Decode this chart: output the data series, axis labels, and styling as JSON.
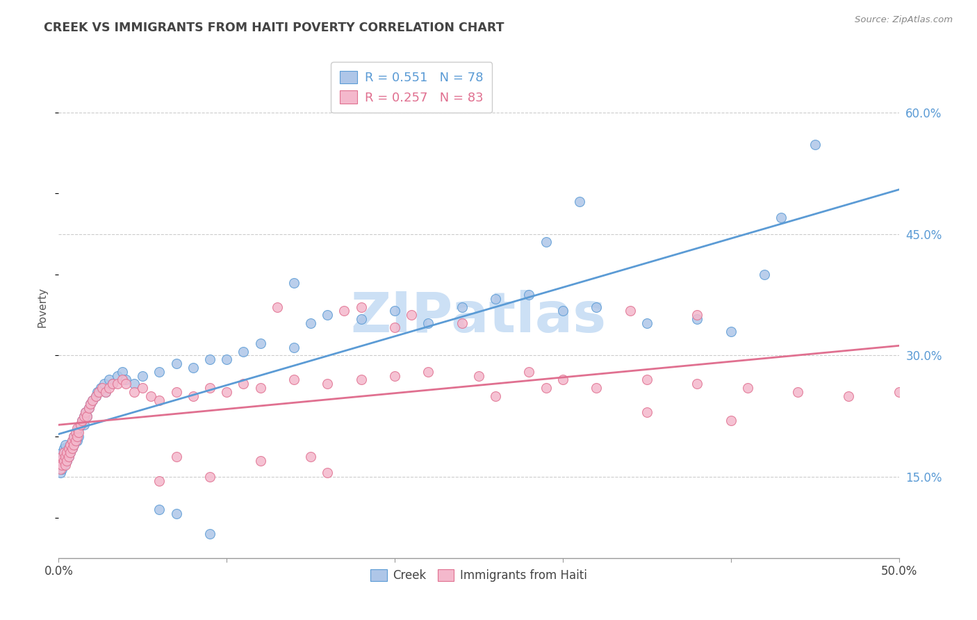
{
  "title": "CREEK VS IMMIGRANTS FROM HAITI POVERTY CORRELATION CHART",
  "source_text": "Source: ZipAtlas.com",
  "ylabel": "Poverty",
  "r1": 0.551,
  "n1": 78,
  "r2": 0.257,
  "n2": 83,
  "color_blue_fill": "#aec6e8",
  "color_pink_fill": "#f4b8cc",
  "color_blue_edge": "#5b9bd5",
  "color_pink_edge": "#e07090",
  "color_blue_line": "#5b9bd5",
  "color_pink_line": "#e07090",
  "color_blue_text": "#5b9bd5",
  "color_pink_text": "#e07090",
  "watermark_text": "ZIPatlas",
  "watermark_color": "#cce0f5",
  "background_color": "#ffffff",
  "grid_color": "#cccccc",
  "title_color": "#444444",
  "legend_label1": "Creek",
  "legend_label2": "Immigrants from Haiti",
  "xmin": 0.0,
  "xmax": 0.5,
  "ymin": 0.05,
  "ymax": 0.67,
  "yticks": [
    0.15,
    0.3,
    0.45,
    0.6
  ],
  "creek_x": [
    0.001,
    0.001,
    0.002,
    0.002,
    0.002,
    0.003,
    0.003,
    0.003,
    0.004,
    0.004,
    0.004,
    0.005,
    0.005,
    0.006,
    0.006,
    0.007,
    0.007,
    0.008,
    0.008,
    0.009,
    0.009,
    0.01,
    0.01,
    0.011,
    0.011,
    0.012,
    0.012,
    0.013,
    0.014,
    0.015,
    0.015,
    0.016,
    0.017,
    0.018,
    0.019,
    0.02,
    0.022,
    0.023,
    0.025,
    0.027,
    0.028,
    0.03,
    0.032,
    0.035,
    0.038,
    0.04,
    0.045,
    0.05,
    0.06,
    0.07,
    0.08,
    0.09,
    0.1,
    0.11,
    0.12,
    0.14,
    0.15,
    0.16,
    0.18,
    0.2,
    0.22,
    0.24,
    0.26,
    0.28,
    0.3,
    0.32,
    0.35,
    0.38,
    0.4,
    0.42,
    0.14,
    0.06,
    0.09,
    0.07,
    0.43,
    0.45,
    0.29,
    0.31
  ],
  "creek_y": [
    0.155,
    0.165,
    0.16,
    0.18,
    0.17,
    0.175,
    0.165,
    0.185,
    0.17,
    0.19,
    0.175,
    0.18,
    0.17,
    0.185,
    0.175,
    0.19,
    0.18,
    0.195,
    0.185,
    0.2,
    0.19,
    0.195,
    0.2,
    0.205,
    0.195,
    0.21,
    0.2,
    0.215,
    0.22,
    0.225,
    0.215,
    0.23,
    0.225,
    0.235,
    0.24,
    0.245,
    0.25,
    0.255,
    0.26,
    0.265,
    0.255,
    0.27,
    0.265,
    0.275,
    0.28,
    0.27,
    0.265,
    0.275,
    0.28,
    0.29,
    0.285,
    0.295,
    0.295,
    0.305,
    0.315,
    0.31,
    0.34,
    0.35,
    0.345,
    0.355,
    0.34,
    0.36,
    0.37,
    0.375,
    0.355,
    0.36,
    0.34,
    0.345,
    0.33,
    0.4,
    0.39,
    0.11,
    0.08,
    0.105,
    0.47,
    0.56,
    0.44,
    0.49
  ],
  "haiti_x": [
    0.001,
    0.001,
    0.002,
    0.002,
    0.003,
    0.003,
    0.004,
    0.004,
    0.005,
    0.005,
    0.006,
    0.006,
    0.007,
    0.007,
    0.008,
    0.008,
    0.009,
    0.009,
    0.01,
    0.01,
    0.011,
    0.011,
    0.012,
    0.013,
    0.014,
    0.015,
    0.016,
    0.017,
    0.018,
    0.019,
    0.02,
    0.022,
    0.024,
    0.026,
    0.028,
    0.03,
    0.032,
    0.035,
    0.038,
    0.04,
    0.045,
    0.05,
    0.055,
    0.06,
    0.07,
    0.08,
    0.09,
    0.1,
    0.11,
    0.12,
    0.14,
    0.16,
    0.18,
    0.2,
    0.22,
    0.25,
    0.28,
    0.3,
    0.32,
    0.35,
    0.38,
    0.41,
    0.44,
    0.47,
    0.5,
    0.29,
    0.26,
    0.2,
    0.15,
    0.12,
    0.07,
    0.17,
    0.24,
    0.35,
    0.4,
    0.18,
    0.06,
    0.09,
    0.13,
    0.34,
    0.16,
    0.38,
    0.21
  ],
  "haiti_y": [
    0.16,
    0.17,
    0.165,
    0.175,
    0.17,
    0.18,
    0.165,
    0.175,
    0.17,
    0.18,
    0.175,
    0.185,
    0.18,
    0.19,
    0.185,
    0.195,
    0.19,
    0.2,
    0.195,
    0.205,
    0.2,
    0.21,
    0.205,
    0.215,
    0.22,
    0.225,
    0.23,
    0.225,
    0.235,
    0.24,
    0.245,
    0.25,
    0.255,
    0.26,
    0.255,
    0.26,
    0.265,
    0.265,
    0.27,
    0.265,
    0.255,
    0.26,
    0.25,
    0.245,
    0.255,
    0.25,
    0.26,
    0.255,
    0.265,
    0.26,
    0.27,
    0.265,
    0.27,
    0.275,
    0.28,
    0.275,
    0.28,
    0.27,
    0.26,
    0.27,
    0.265,
    0.26,
    0.255,
    0.25,
    0.255,
    0.26,
    0.25,
    0.335,
    0.175,
    0.17,
    0.175,
    0.355,
    0.34,
    0.23,
    0.22,
    0.36,
    0.145,
    0.15,
    0.36,
    0.355,
    0.155,
    0.35,
    0.35
  ]
}
